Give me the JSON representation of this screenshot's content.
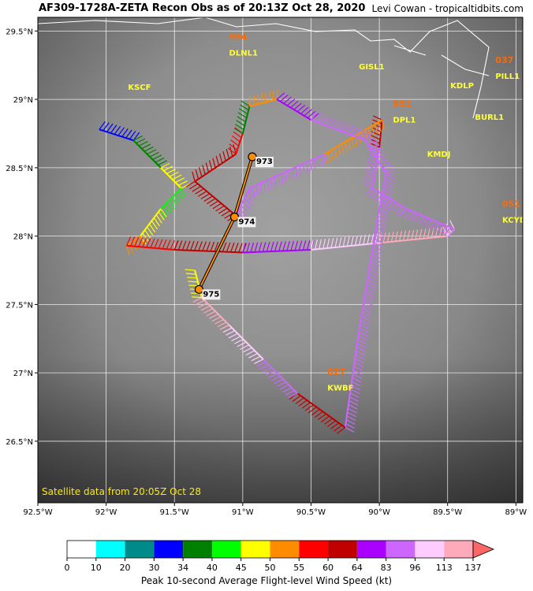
{
  "header": {
    "title": "AF309-1728A-ZETA Recon Obs as of 20:13Z Oct 28, 2020",
    "credit": "Levi Cowan - tropicaltidbits.com"
  },
  "map": {
    "lat_range": [
      26.05,
      29.6
    ],
    "lon_range": [
      -92.5,
      -88.95
    ],
    "lat_ticks": [
      "29.5°N",
      "29°N",
      "28.5°N",
      "28°N",
      "27.5°N",
      "27°N",
      "26.5°N"
    ],
    "lat_values": [
      29.5,
      29.0,
      28.5,
      28.0,
      27.5,
      27.0,
      26.5
    ],
    "lon_ticks": [
      "92.5°W",
      "92°W",
      "91.5°W",
      "91°W",
      "90.5°W",
      "90°W",
      "89.5°W",
      "89°W"
    ],
    "lon_values": [
      -92.5,
      -92.0,
      -91.5,
      -91.0,
      -90.5,
      -90.0,
      -89.5,
      -89.0
    ],
    "grid": true,
    "satellite_note": "Satellite data from 20:05Z Oct 28"
  },
  "stations": [
    {
      "id": "KSCF",
      "lat": 29.07,
      "lon": -91.84,
      "peak": null
    },
    {
      "id": "DLNL1",
      "lat": 29.32,
      "lon": -91.1,
      "peak": "994"
    },
    {
      "id": "GISL1",
      "lat": 29.22,
      "lon": -90.15,
      "peak": null
    },
    {
      "id": "KDLP",
      "lat": 29.08,
      "lon": -89.48,
      "peak": null
    },
    {
      "id": "PILL1",
      "lat": 29.15,
      "lon": -89.15,
      "peak": "037"
    },
    {
      "id": "BURL1",
      "lat": 28.85,
      "lon": -89.3,
      "peak": null
    },
    {
      "id": "DPL1",
      "lat": 28.83,
      "lon": -89.9,
      "peak": "951"
    },
    {
      "id": "KMDJ",
      "lat": 28.58,
      "lon": -89.65,
      "peak": null
    },
    {
      "id": "KCYD",
      "lat": 28.1,
      "lon": -89.1,
      "peak": "051"
    },
    {
      "id": "KWBF",
      "lat": 26.87,
      "lon": -90.38,
      "peak": "027"
    }
  ],
  "center_fixes": [
    {
      "pressure": "973",
      "lat": 28.58,
      "lon": -90.93
    },
    {
      "pressure": "974",
      "lat": 28.14,
      "lon": -91.06
    },
    {
      "pressure": "975",
      "lat": 27.61,
      "lon": -91.32
    }
  ],
  "flight_legs": [
    {
      "points": [
        [
          28.78,
          -92.05
        ],
        [
          28.7,
          -91.8
        ],
        [
          28.5,
          -91.6
        ],
        [
          28.35,
          -91.45
        ],
        [
          28.2,
          -91.6
        ],
        [
          28.0,
          -91.75
        ],
        [
          27.93,
          -91.85
        ],
        [
          27.9,
          -91.5
        ],
        [
          27.88,
          -91.0
        ],
        [
          27.9,
          -90.5
        ],
        [
          27.95,
          -90.0
        ],
        [
          28.0,
          -89.5
        ],
        [
          28.05,
          -89.45
        ]
      ],
      "speeds": [
        30,
        35,
        45,
        40,
        45,
        50,
        55,
        60,
        64,
        96,
        113,
        96,
        83
      ]
    },
    {
      "points": [
        [
          28.05,
          -89.45
        ],
        [
          28.2,
          -89.8
        ],
        [
          28.35,
          -90.05
        ],
        [
          28.65,
          -90.0
        ],
        [
          28.85,
          -89.98
        ],
        [
          28.6,
          -90.4
        ],
        [
          28.35,
          -90.95
        ],
        [
          28.15,
          -91.05
        ]
      ],
      "speeds": [
        83,
        83,
        83,
        60,
        50,
        83,
        83,
        83
      ]
    },
    {
      "points": [
        [
          28.15,
          -91.05
        ],
        [
          28.4,
          -91.35
        ],
        [
          28.6,
          -91.05
        ],
        [
          28.75,
          -91.0
        ],
        [
          28.95,
          -90.95
        ],
        [
          29.0,
          -90.75
        ],
        [
          28.85,
          -90.5
        ],
        [
          28.7,
          -90.1
        ],
        [
          28.45,
          -89.95
        ],
        [
          28.2,
          -90.0
        ],
        [
          27.9,
          -90.05
        ],
        [
          27.3,
          -90.15
        ],
        [
          26.6,
          -90.25
        ]
      ],
      "speeds": [
        60,
        60,
        55,
        34,
        50,
        64,
        83,
        83,
        83,
        83,
        83,
        83,
        64
      ]
    },
    {
      "points": [
        [
          26.6,
          -90.25
        ],
        [
          26.85,
          -90.6
        ],
        [
          27.1,
          -90.85
        ],
        [
          27.35,
          -91.1
        ],
        [
          27.55,
          -91.3
        ],
        [
          27.75,
          -91.35
        ]
      ],
      "speeds": [
        60,
        83,
        96,
        113,
        45,
        34
      ]
    }
  ],
  "colorbar": {
    "ticks": [
      "0",
      "10",
      "20",
      "30",
      "34",
      "40",
      "45",
      "50",
      "55",
      "60",
      "64",
      "83",
      "96",
      "113",
      "137"
    ],
    "colors": [
      "#ffffff",
      "#00ffff",
      "#008b8b",
      "#0000ff",
      "#008000",
      "#00ff00",
      "#ffff00",
      "#ff8c00",
      "#ff0000",
      "#c00000",
      "#aa00ff",
      "#cc66ff",
      "#ffccff",
      "#ffaabb"
    ],
    "extend_color": "#ff6666",
    "title": "Peak 10-second Average Flight-level Wind Speed (kt)"
  }
}
